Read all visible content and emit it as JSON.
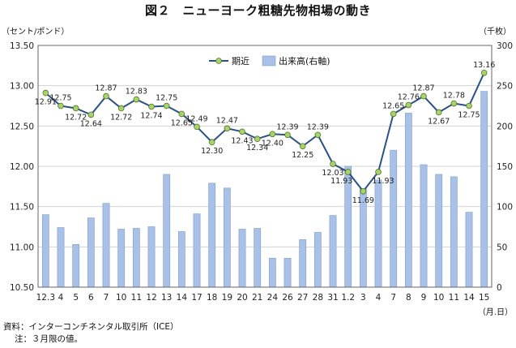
{
  "title": "図２　ニューヨーク粗糖先物相場の動き",
  "left_unit": "（セント/ポンド）",
  "right_unit": "（千枚）",
  "x_unit": "（月.日）",
  "footer": {
    "source": "資料：インターコンチネンタル取引所（ICE）",
    "note": "注：３月限の値。"
  },
  "colors": {
    "line": "#2a5187",
    "marker": "#a6d468",
    "bar": "#a9c1e6",
    "bar_edge": "#7f9ed0",
    "grid": "#d3d3d3"
  },
  "chart_data": {
    "type": "bar+line",
    "categories": [
      "12.3",
      "4",
      "5",
      "6",
      "7",
      "10",
      "11",
      "12",
      "13",
      "14",
      "17",
      "18",
      "19",
      "20",
      "21",
      "24",
      "26",
      "27",
      "28",
      "31",
      "1.2",
      "3",
      "4",
      "7",
      "8",
      "9",
      "10",
      "11",
      "14",
      "15"
    ],
    "series": [
      {
        "name": "期近",
        "type": "line",
        "axis": "left",
        "values": [
          12.91,
          12.75,
          12.72,
          12.64,
          12.87,
          12.72,
          12.83,
          12.74,
          12.75,
          12.65,
          12.49,
          12.3,
          12.47,
          12.43,
          12.34,
          12.4,
          12.39,
          12.25,
          12.39,
          12.03,
          11.93,
          11.69,
          11.93,
          12.65,
          12.76,
          12.87,
          12.67,
          12.78,
          12.75,
          13.16
        ],
        "labels": [
          "12.91",
          "12.75",
          "12.72",
          "12.64",
          "12.87",
          "12.72",
          "12.83",
          "12.74",
          "12.75",
          "12.65",
          "12.49",
          "12.30",
          "12.47",
          "12.43",
          "12.34",
          "12.40",
          "12.39",
          "12.25",
          "12.39",
          "12.03",
          "11.93",
          "11.69",
          "11.93",
          "12.65",
          "12.76",
          "12.87",
          "12.67",
          "12.78",
          "12.75",
          "13.16"
        ]
      },
      {
        "name": "出来高(右軸)",
        "type": "bar",
        "axis": "right",
        "values": [
          90,
          74,
          53,
          86,
          104,
          72,
          73,
          75,
          140,
          69,
          91,
          129,
          123,
          72,
          73,
          36,
          36,
          59,
          68,
          89,
          150,
          122,
          133,
          170,
          216,
          152,
          140,
          137,
          93,
          243
        ]
      }
    ],
    "y_left": {
      "min": 10.5,
      "max": 13.5,
      "ticks": [
        "10.50",
        "11.00",
        "11.50",
        "12.00",
        "12.50",
        "13.00",
        "13.50"
      ]
    },
    "y_right": {
      "min": 0,
      "max": 300,
      "ticks": [
        "0",
        "50",
        "100",
        "150",
        "200",
        "250",
        "300"
      ]
    },
    "grid": true,
    "legend_position": "top-right"
  }
}
